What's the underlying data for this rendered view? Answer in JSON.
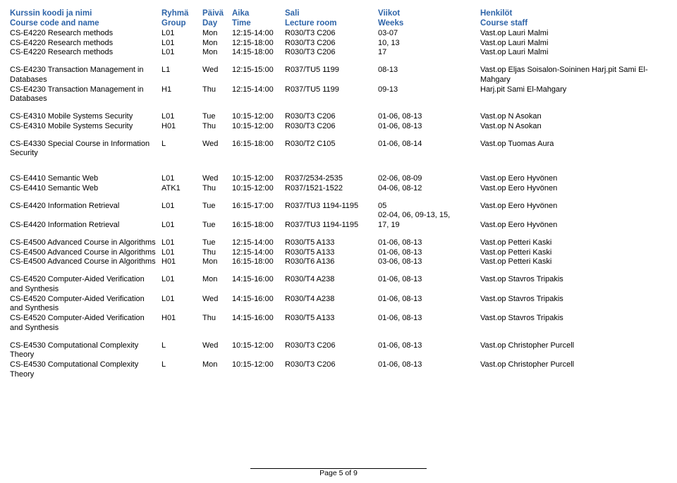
{
  "colors": {
    "accent": "#2e64a8",
    "text": "#000000",
    "background": "#ffffff"
  },
  "header": {
    "c1a": "Kurssin koodi ja nimi",
    "c1b": "Course code and name",
    "c2a": "Ryhmä",
    "c2b": "Group",
    "c3a": "Päivä",
    "c3b": "Day",
    "c4a": "Aika",
    "c4b": "Time",
    "c5a": "Sali",
    "c5b": "Lecture room",
    "c6a": "Viikot",
    "c6b": "Weeks",
    "c7a": "Henkilöt",
    "c7b": "Course staff"
  },
  "rows": [
    {
      "c1": "CS-E4220 Research methods",
      "c2": "L01",
      "c3": "Mon",
      "c4": "12:15-14:00",
      "c5": "R030/T3 C206",
      "c6": "03-07",
      "c7": "Vast.op Lauri Malmi"
    },
    {
      "c1": "CS-E4220 Research methods",
      "c2": "L01",
      "c3": "Mon",
      "c4": "12:15-18:00",
      "c5": "R030/T3 C206",
      "c6": "10, 13",
      "c7": "Vast.op Lauri Malmi"
    },
    {
      "c1": "CS-E4220 Research methods",
      "c2": "L01",
      "c3": "Mon",
      "c4": "14:15-18:00",
      "c5": "R030/T3 C206",
      "c6": "17",
      "c7": "Vast.op Lauri Malmi"
    },
    {
      "spacer": true
    },
    {
      "c1": "CS-E4230 Transaction Management in Databases",
      "c2": "L1",
      "c3": "Wed",
      "c4": "12:15-15:00",
      "c5": "R037/TU5 1199",
      "c6": "08-13",
      "c7": "Vast.op Eljas Soisalon-Soininen  Harj.pit Sami El-Mahgary"
    },
    {
      "c1": "CS-E4230 Transaction Management in Databases",
      "c2": "H1",
      "c3": "Thu",
      "c4": "12:15-14:00",
      "c5": "R037/TU5 1199",
      "c6": "09-13",
      "c7": "Harj.pit Sami El-Mahgary"
    },
    {
      "spacer": true
    },
    {
      "c1": "CS-E4310 Mobile Systems Security",
      "c2": "L01",
      "c3": "Tue",
      "c4": "10:15-12:00",
      "c5": "R030/T3 C206",
      "c6": "01-06, 08-13",
      "c7": "Vast.op N Asokan"
    },
    {
      "c1": "CS-E4310 Mobile Systems Security",
      "c2": "H01",
      "c3": "Thu",
      "c4": "10:15-12:00",
      "c5": "R030/T3 C206",
      "c6": "01-06, 08-13",
      "c7": "Vast.op N Asokan"
    },
    {
      "spacer": true
    },
    {
      "c1": "CS-E4330 Special Course in Information Security",
      "c2": "L",
      "c3": "Wed",
      "c4": "16:15-18:00",
      "c5": "R030/T2 C105",
      "c6": "01-06, 08-14",
      "c7": "Vast.op Tuomas Aura"
    },
    {
      "big": true
    },
    {
      "c1": "CS-E4410 Semantic Web",
      "c2": "L01",
      "c3": "Wed",
      "c4": "10:15-12:00",
      "c5": "R037/2534-2535",
      "c6": "02-06, 08-09",
      "c7": "Vast.op Eero Hyvönen"
    },
    {
      "c1": "CS-E4410 Semantic Web",
      "c2": "ATK1",
      "c3": "Thu",
      "c4": "10:15-12:00",
      "c5": "R037/1521-1522",
      "c6": "04-06, 08-12",
      "c7": "Vast.op Eero Hyvönen"
    },
    {
      "spacer": true
    },
    {
      "c1": "CS-E4420 Information Retrieval",
      "c2": "L01",
      "c3": "Tue",
      "c4": "16:15-17:00",
      "c5": "R037/TU3 1194-1195",
      "c6": "05",
      "c7": "Vast.op Eero Hyvönen"
    },
    {
      "c1": "",
      "c2": "",
      "c3": "",
      "c4": "",
      "c5": "",
      "c6": "02-04, 06, 09-13, 15,",
      "c7": ""
    },
    {
      "c1": "CS-E4420 Information Retrieval",
      "c2": "L01",
      "c3": "Tue",
      "c4": "16:15-18:00",
      "c5": "R037/TU3 1194-1195",
      "c6": "17, 19",
      "c7": "Vast.op Eero Hyvönen"
    },
    {
      "spacer": true
    },
    {
      "c1": "CS-E4500 Advanced Course in Algorithms",
      "c2": "L01",
      "c3": "Tue",
      "c4": "12:15-14:00",
      "c5": "R030/T5 A133",
      "c6": "01-06, 08-13",
      "c7": "Vast.op Petteri Kaski"
    },
    {
      "c1": "CS-E4500 Advanced Course in Algorithms",
      "c2": "L01",
      "c3": "Thu",
      "c4": "12:15-14:00",
      "c5": "R030/T5 A133",
      "c6": "01-06, 08-13",
      "c7": "Vast.op Petteri Kaski"
    },
    {
      "c1": "CS-E4500 Advanced Course in Algorithms",
      "c2": "H01",
      "c3": "Mon",
      "c4": "16:15-18:00",
      "c5": "R030/T6 A136",
      "c6": "03-06, 08-13",
      "c7": "Vast.op Petteri Kaski"
    },
    {
      "spacer": true
    },
    {
      "c1": "CS-E4520 Computer-Aided Verification and Synthesis",
      "c2": "L01",
      "c3": "Mon",
      "c4": "14:15-16:00",
      "c5": "R030/T4 A238",
      "c6": "01-06, 08-13",
      "c7": "Vast.op Stavros Tripakis"
    },
    {
      "c1": "CS-E4520 Computer-Aided Verification and Synthesis",
      "c2": "L01",
      "c3": "Wed",
      "c4": "14:15-16:00",
      "c5": "R030/T4 A238",
      "c6": "01-06, 08-13",
      "c7": "Vast.op Stavros Tripakis"
    },
    {
      "c1": "CS-E4520 Computer-Aided Verification and Synthesis",
      "c2": "H01",
      "c3": "Thu",
      "c4": "14:15-16:00",
      "c5": "R030/T5 A133",
      "c6": "01-06, 08-13",
      "c7": "Vast.op Stavros Tripakis"
    },
    {
      "spacer": true
    },
    {
      "c1": "CS-E4530 Computational Complexity Theory",
      "c2": "L",
      "c3": "Wed",
      "c4": "10:15-12:00",
      "c5": "R030/T3 C206",
      "c6": "01-06, 08-13",
      "c7": "Vast.op Christopher Purcell"
    },
    {
      "c1": "CS-E4530 Computational Complexity Theory",
      "c2": "L",
      "c3": "Mon",
      "c4": "10:15-12:00",
      "c5": "R030/T3 C206",
      "c6": "01-06, 08-13",
      "c7": "Vast.op Christopher Purcell"
    }
  ],
  "footer": "Page 5 of 9"
}
